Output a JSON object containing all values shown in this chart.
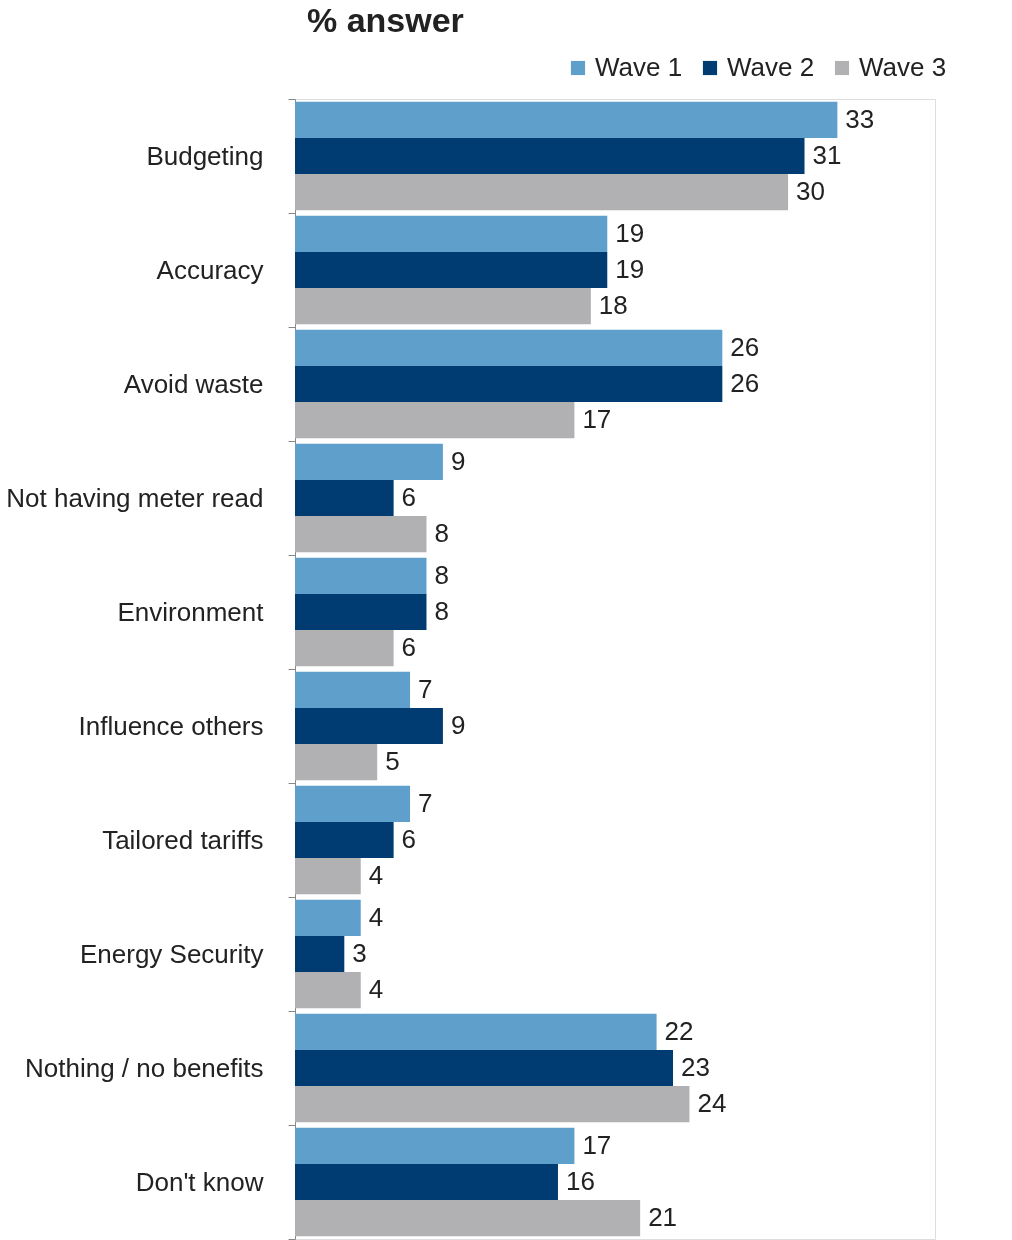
{
  "chart_data": {
    "type": "bar",
    "orientation": "horizontal",
    "title": "% answer",
    "categories": [
      "Budgeting",
      "Accuracy",
      "Avoid waste",
      "Not having meter read",
      "Environment",
      "Influence others",
      "Tailored tariffs",
      "Energy Security",
      "Nothing / no benefits",
      "Don't know"
    ],
    "series": [
      {
        "name": "Wave 1",
        "color": "#5f9fcb",
        "values": [
          33,
          19,
          26,
          9,
          8,
          7,
          7,
          4,
          22,
          17
        ]
      },
      {
        "name": "Wave 2",
        "color": "#003b71",
        "values": [
          31,
          19,
          26,
          6,
          8,
          9,
          6,
          3,
          23,
          16
        ]
      },
      {
        "name": "Wave 3",
        "color": "#b1b1b3",
        "values": [
          30,
          18,
          17,
          8,
          6,
          5,
          4,
          4,
          24,
          21
        ]
      }
    ],
    "data_labels": true,
    "legend": "top right"
  }
}
